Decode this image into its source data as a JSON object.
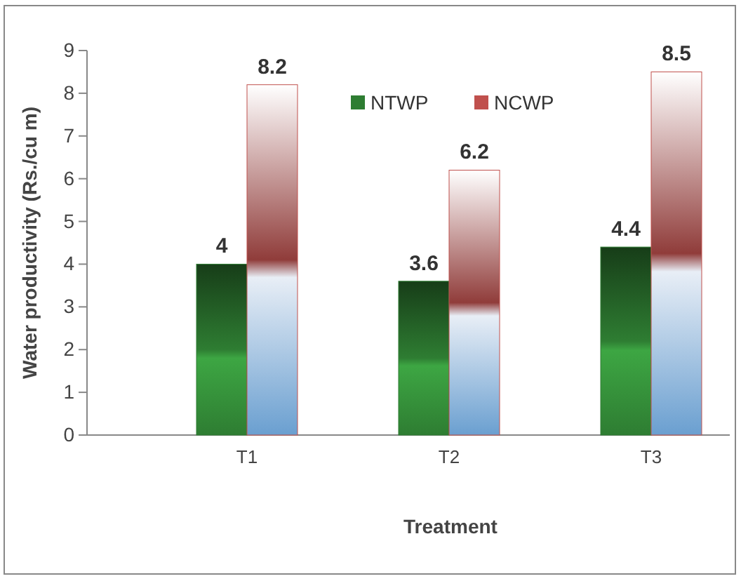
{
  "chart_data": {
    "type": "bar",
    "xlabel": "Treatment",
    "ylabel": "Water productivity (Rs./cu m)",
    "categories": [
      "T1",
      "T2",
      "T3"
    ],
    "series": [
      {
        "name": "NTWP",
        "color": "#2e7d32",
        "values": [
          4,
          3.6,
          4.4
        ]
      },
      {
        "name": "NCWP",
        "color": "#c0504d",
        "values": [
          8.2,
          6.2,
          8.5
        ]
      }
    ],
    "ylim": [
      0,
      9
    ],
    "yticks": [
      0,
      1,
      2,
      3,
      4,
      5,
      6,
      7,
      8,
      9
    ],
    "grid": false,
    "legend": "top",
    "data_labels": true
  }
}
